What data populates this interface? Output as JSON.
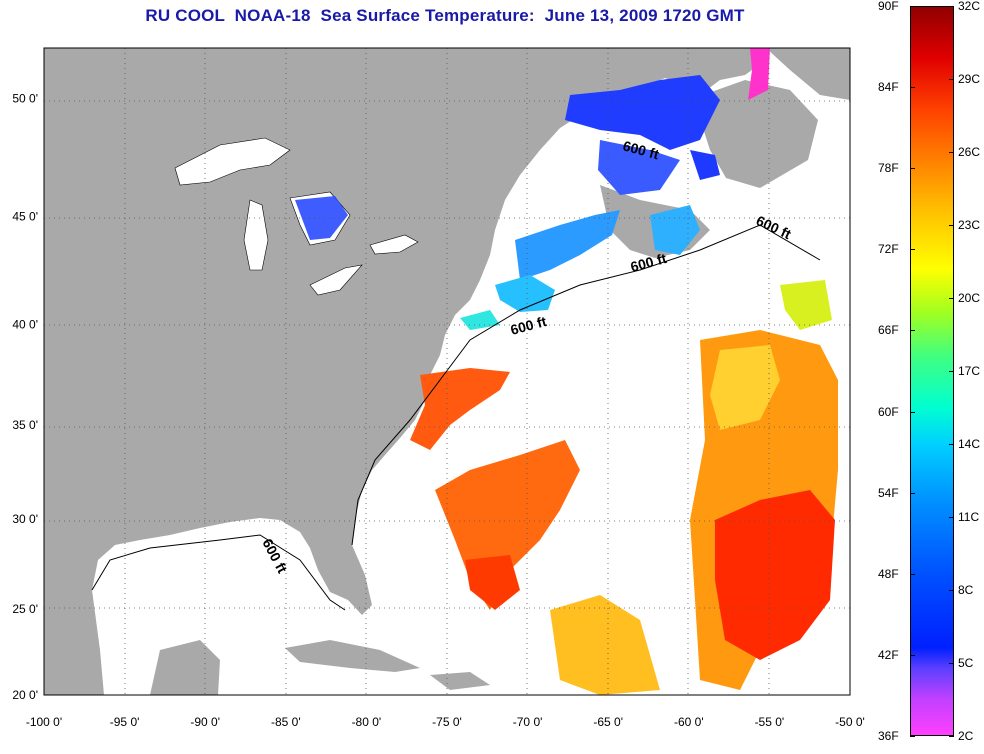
{
  "title": "RU COOL  NOAA-18  Sea Surface Temperature:  June 13, 2009 1720 GMT",
  "map": {
    "lon_range": [
      -100,
      -50
    ],
    "lat_range": [
      20,
      52
    ],
    "lon_ticks": [
      -100,
      -95,
      -90,
      -85,
      -80,
      -75,
      -70,
      -65,
      -60,
      -55,
      -50
    ],
    "lat_ticks": [
      20,
      25,
      30,
      35,
      40,
      45,
      50
    ],
    "lon_tick_labels": [
      "-100 0'",
      "-95 0'",
      "-90 0'",
      "-85 0'",
      "-80 0'",
      "-75 0'",
      "-70 0'",
      "-65 0'",
      "-60 0'",
      "-55 0'",
      "-50 0'"
    ],
    "lat_tick_labels": [
      "20 0'",
      "25 0'",
      "30 0'",
      "35 0'",
      "40 0'",
      "45 0'",
      "50 0'"
    ],
    "gridlines": true,
    "colors": {
      "land": "#a9a9a9",
      "ocean_no_data": "#ffffff",
      "gridline": "#555555"
    },
    "contour_labels": [
      "600 ft",
      "600 ft",
      "600 ft",
      "600 ft",
      "600 ft"
    ]
  },
  "colorbar": {
    "fahrenheit_labels": [
      "90F",
      "84F",
      "78F",
      "72F",
      "66F",
      "60F",
      "54F",
      "48F",
      "42F",
      "36F"
    ],
    "celsius_labels": [
      "32C",
      "29C",
      "26C",
      "23C",
      "20C",
      "17C",
      "14C",
      "11C",
      "8C",
      "5C",
      "2C"
    ],
    "range_c": [
      2,
      32
    ]
  }
}
